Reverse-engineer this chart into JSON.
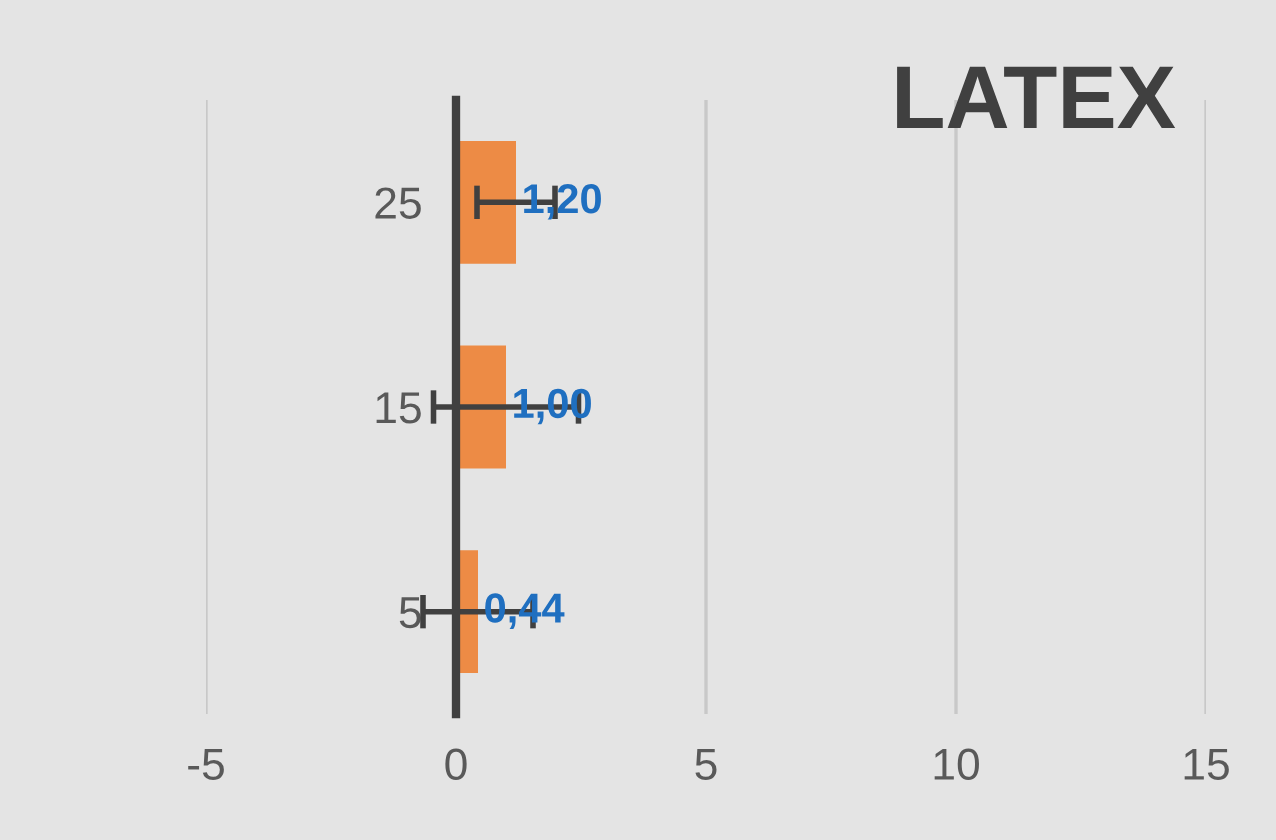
{
  "chart_data": {
    "type": "bar",
    "orientation": "horizontal",
    "title": "LATEX",
    "categories": [
      "25",
      "15",
      "5"
    ],
    "values": [
      1.2,
      1.0,
      0.44
    ],
    "errors": [
      0.78,
      1.45,
      1.1
    ],
    "value_labels": [
      "1,20",
      "1,00",
      "0,44"
    ],
    "color": "#ed8b45",
    "xlim": [
      -5,
      15
    ],
    "xticks": [
      -5,
      0,
      5,
      10,
      15
    ],
    "grid": "x",
    "legend": false
  }
}
